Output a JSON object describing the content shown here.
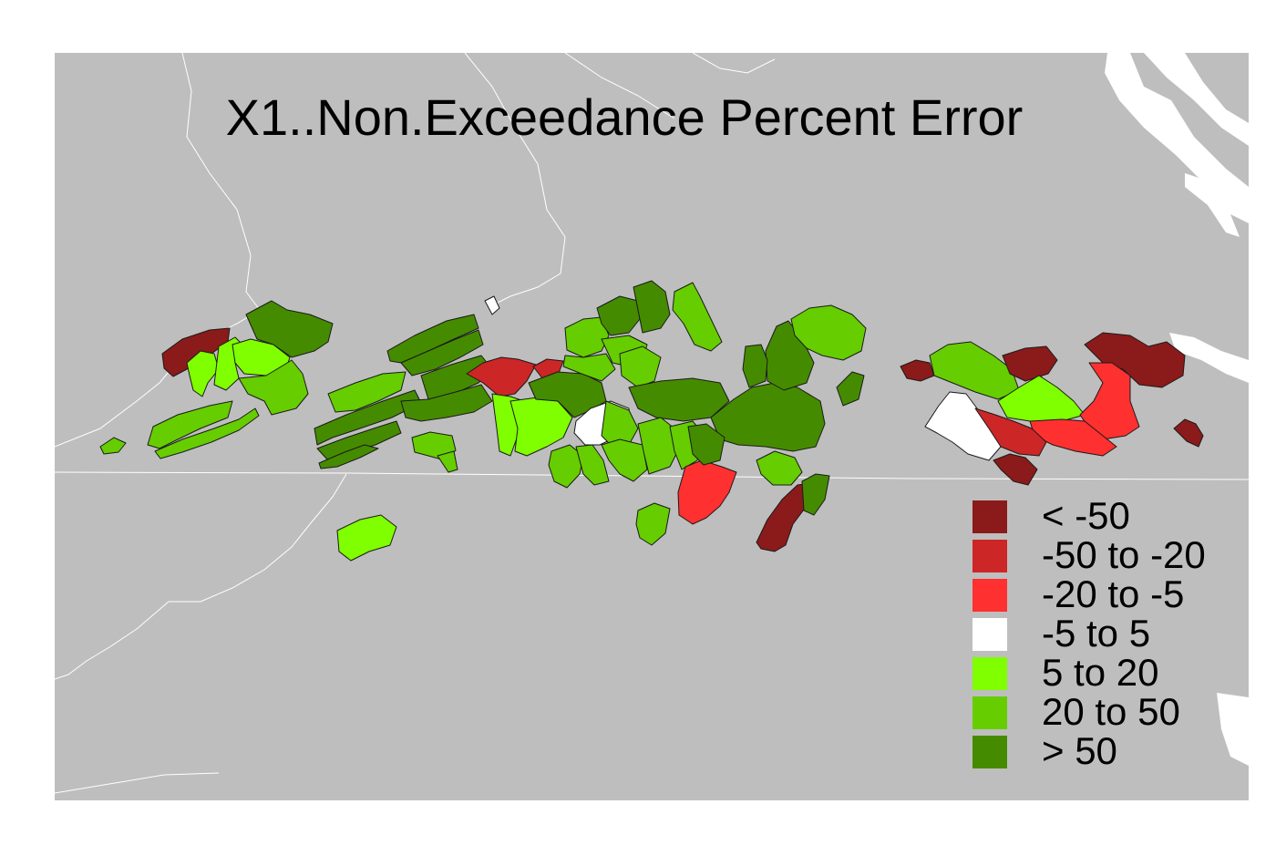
{
  "title": "X1..Non.Exceedance Percent Error",
  "colors": {
    "background": "#bebebe",
    "water": "#ffffff",
    "boundary": "#ffffff",
    "outline": "#1a1a1a"
  },
  "legend": [
    {
      "label": "< -50",
      "color": "#8b1a1a"
    },
    {
      "label": "-50 to -20",
      "color": "#cd2626"
    },
    {
      "label": "-20 to -5",
      "color": "#ff3030"
    },
    {
      "label": "-5 to 5",
      "color": "#ffffff"
    },
    {
      "label": "5 to 20",
      "color": "#7fff00"
    },
    {
      "label": "20 to 50",
      "color": "#66cd00"
    },
    {
      "label": "> 50",
      "color": "#458b00"
    }
  ]
}
